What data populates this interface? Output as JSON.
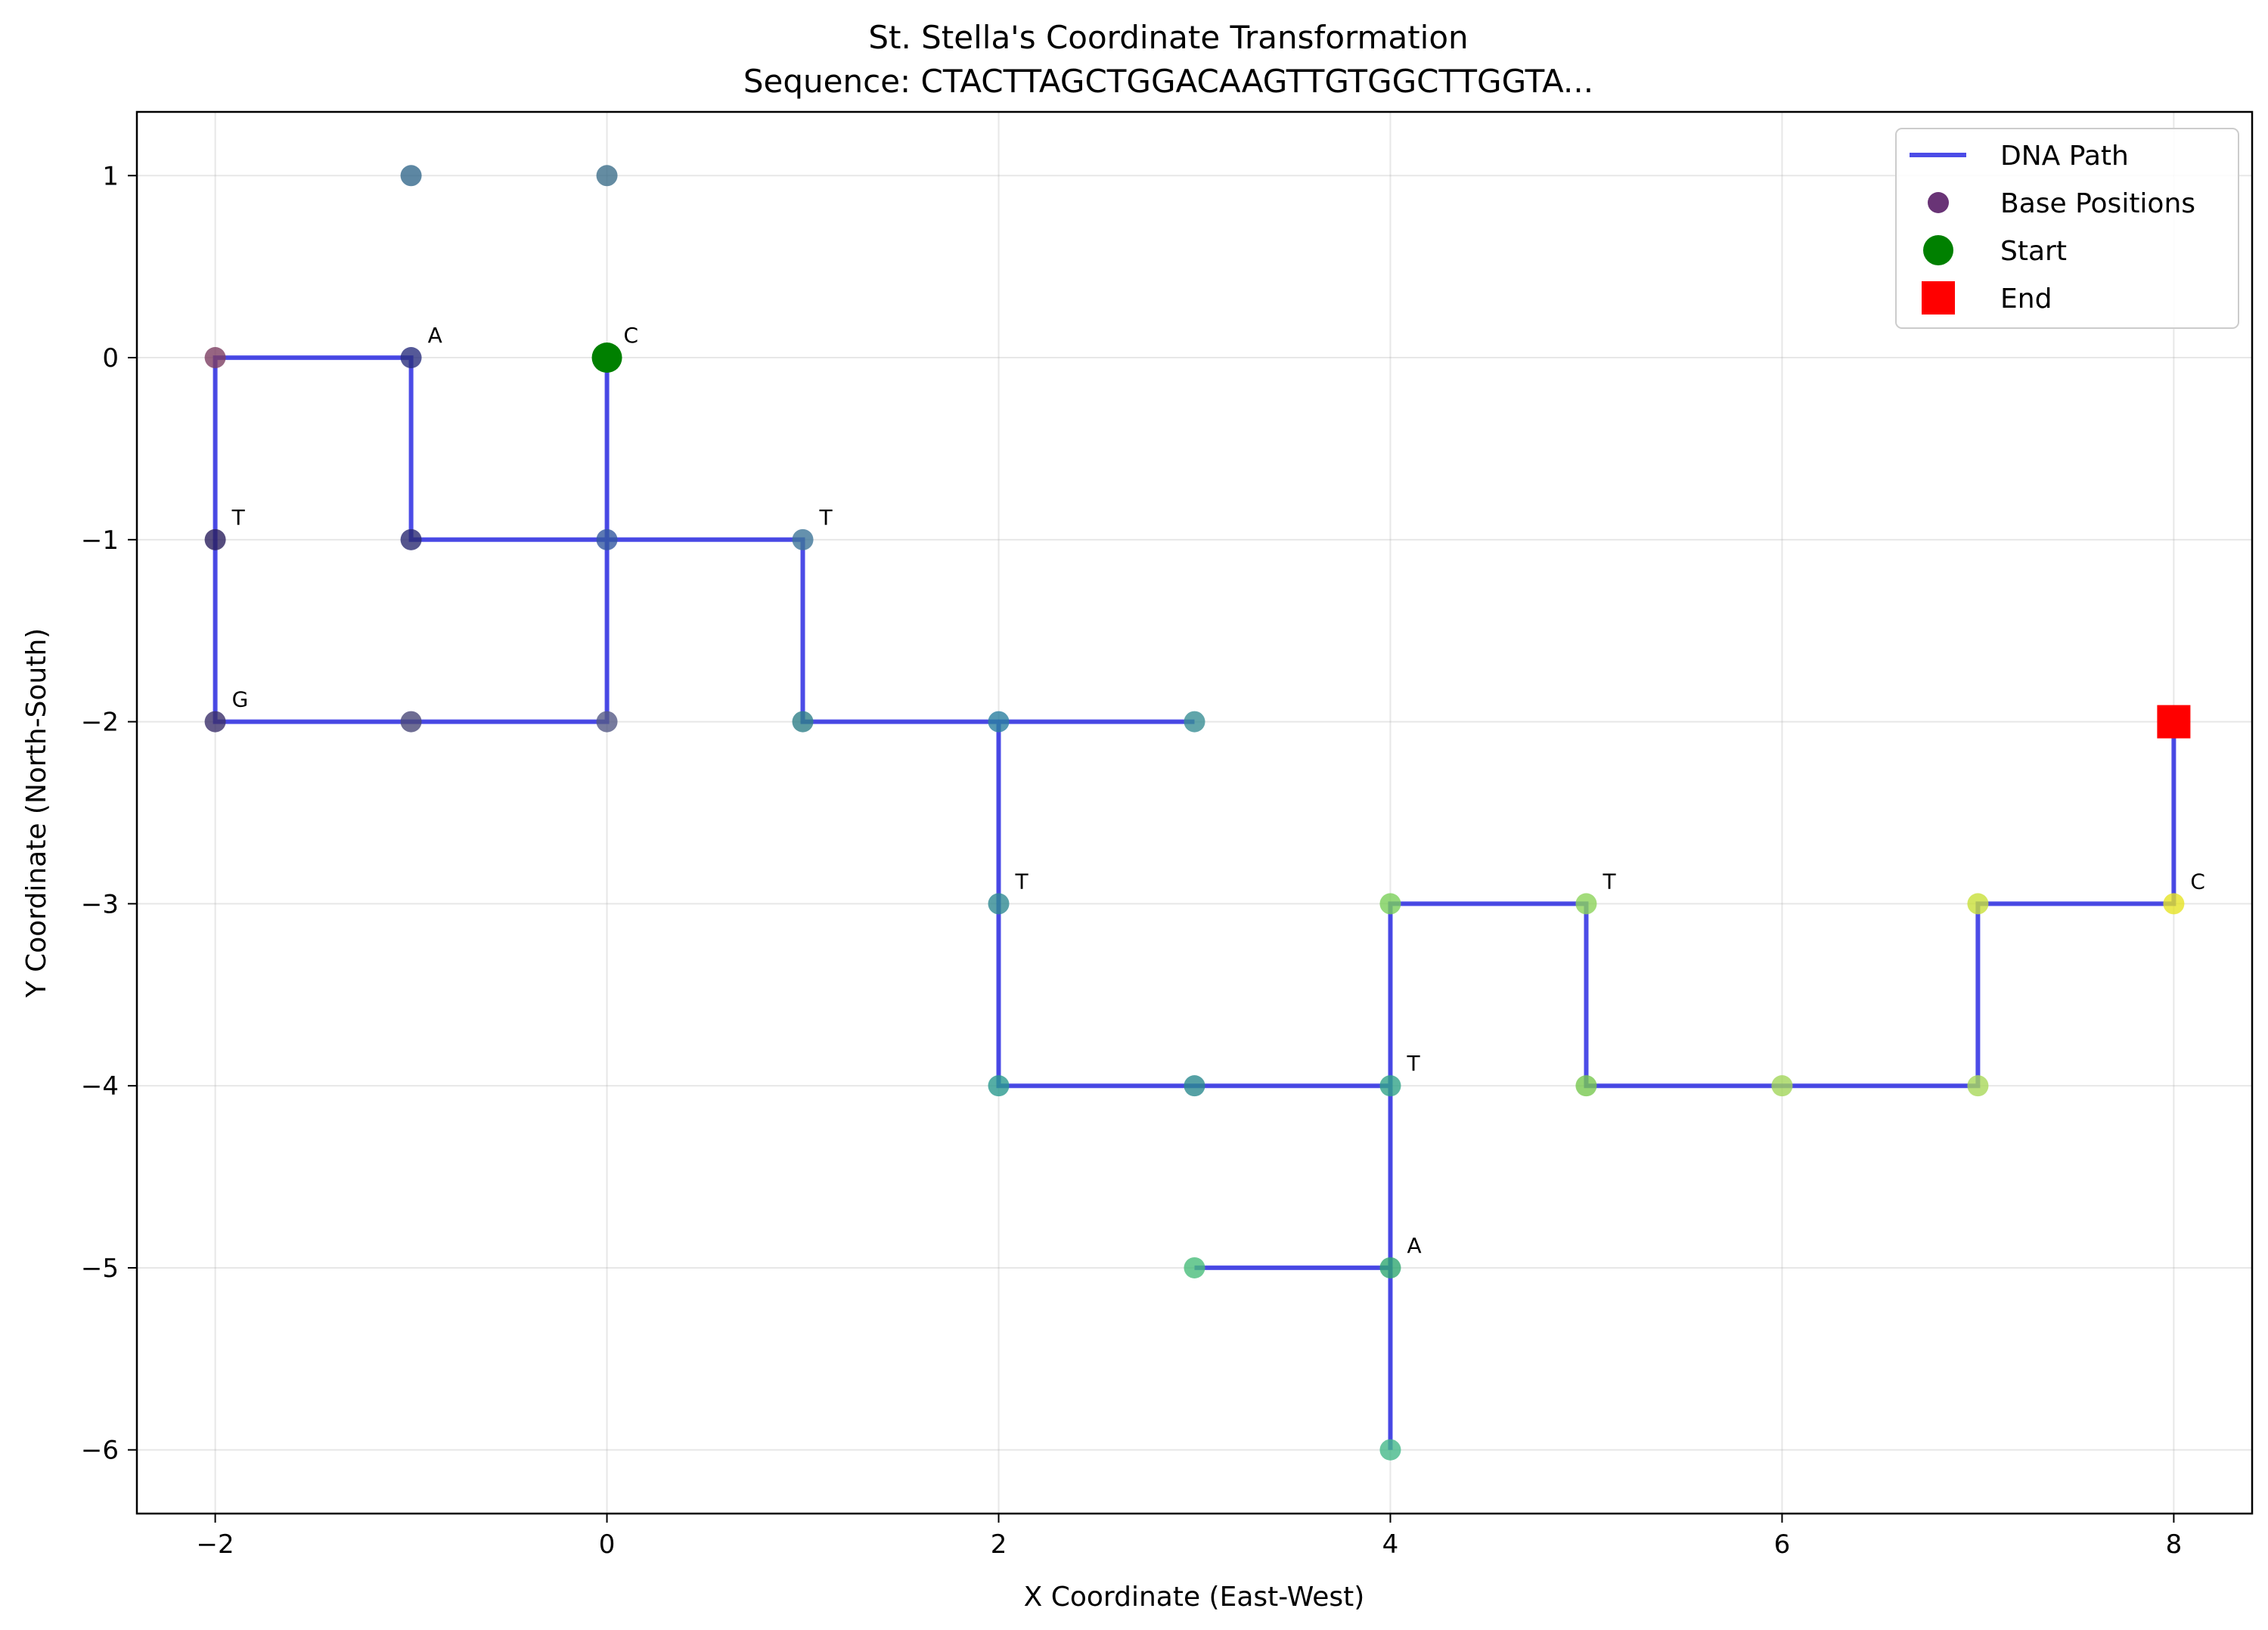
{
  "chart_data": {
    "type": "line",
    "title": "St. Stella's Coordinate Transformation",
    "subtitle": "Sequence: CTACTTAGCTGGACAAGTTGTGGCTTGGTA...",
    "xlabel": "X Coordinate (East-West)",
    "ylabel": "Y Coordinate (North-South)",
    "xlim": [
      -2.4,
      8.4
    ],
    "ylim": [
      -6.35,
      1.35
    ],
    "xticks": [
      -2,
      0,
      2,
      4,
      6,
      8
    ],
    "yticks": [
      1,
      0,
      -1,
      -2,
      -3,
      -4,
      -5,
      -6
    ],
    "xtick_labels": [
      "−2",
      "0",
      "2",
      "4",
      "6",
      "8"
    ],
    "ytick_labels": [
      "1",
      "0",
      "−1",
      "−2",
      "−3",
      "−4",
      "−5",
      "−6"
    ],
    "grid": true,
    "legend_position": "top-right",
    "legend": [
      {
        "label": "DNA Path",
        "kind": "line",
        "color": "#0000dd"
      },
      {
        "label": "Base Positions",
        "kind": "dot",
        "color": "#440154"
      },
      {
        "label": "Start",
        "kind": "dot",
        "color": "#008000"
      },
      {
        "label": "End",
        "kind": "square",
        "color": "#ff0000"
      }
    ],
    "path": [
      [
        0,
        0
      ],
      [
        0,
        -1
      ],
      [
        -1,
        -1
      ],
      [
        -1,
        0
      ],
      [
        -2,
        0
      ],
      [
        -2,
        -1
      ],
      [
        -2,
        -2
      ],
      [
        -1,
        -2
      ],
      [
        0,
        -2
      ],
      [
        0,
        -1
      ],
      [
        1,
        -1
      ],
      [
        1,
        -2
      ],
      [
        2,
        -2
      ],
      [
        3,
        -2
      ],
      [
        2,
        -2
      ],
      [
        2,
        -3
      ],
      [
        2,
        -4
      ],
      [
        3,
        -4
      ],
      [
        4,
        -4
      ],
      [
        4,
        -5
      ],
      [
        3,
        -5
      ],
      [
        4,
        -5
      ],
      [
        4,
        -6
      ],
      [
        4,
        -4
      ],
      [
        4,
        -3
      ],
      [
        5,
        -3
      ],
      [
        5,
        -4
      ],
      [
        6,
        -4
      ],
      [
        7,
        -4
      ],
      [
        7,
        -3
      ],
      [
        8,
        -3
      ],
      [
        8,
        -2
      ]
    ],
    "points": [
      {
        "x": -2,
        "y": 0,
        "color": "#7d3f63"
      },
      {
        "x": -1,
        "y": 0,
        "color": "#2b2f7e"
      },
      {
        "x": 0,
        "y": 0,
        "color": "#2c5f8c"
      },
      {
        "x": -1,
        "y": 1,
        "color": "#35698c"
      },
      {
        "x": 0,
        "y": 1,
        "color": "#3d6f8b"
      },
      {
        "x": -2,
        "y": -1,
        "color": "#2a1f5e"
      },
      {
        "x": -1,
        "y": -1,
        "color": "#2b2b72"
      },
      {
        "x": 0,
        "y": -1,
        "color": "#3357a0"
      },
      {
        "x": 1,
        "y": -1,
        "color": "#3f7698"
      },
      {
        "x": -2,
        "y": -2,
        "color": "#3b2f6a"
      },
      {
        "x": -1,
        "y": -2,
        "color": "#4a4878"
      },
      {
        "x": 0,
        "y": -2,
        "color": "#555a86"
      },
      {
        "x": 1,
        "y": -2,
        "color": "#2f8088"
      },
      {
        "x": 2,
        "y": -2,
        "color": "#2b7fa0"
      },
      {
        "x": 3,
        "y": -2,
        "color": "#3a8f95"
      },
      {
        "x": 2,
        "y": -3,
        "color": "#2f8a92"
      },
      {
        "x": 2,
        "y": -4,
        "color": "#2a9a8e"
      },
      {
        "x": 3,
        "y": -4,
        "color": "#2b8a8f"
      },
      {
        "x": 4,
        "y": -4,
        "color": "#32a488"
      },
      {
        "x": 3,
        "y": -5,
        "color": "#48bd7a"
      },
      {
        "x": 4,
        "y": -5,
        "color": "#2fa870"
      },
      {
        "x": 4,
        "y": -6,
        "color": "#45b98a"
      },
      {
        "x": 4,
        "y": -3,
        "color": "#7bd05a"
      },
      {
        "x": 5,
        "y": -3,
        "color": "#8cd35a"
      },
      {
        "x": 5,
        "y": -4,
        "color": "#78c850"
      },
      {
        "x": 6,
        "y": -4,
        "color": "#a3d65a"
      },
      {
        "x": 7,
        "y": -4,
        "color": "#a9d85a"
      },
      {
        "x": 7,
        "y": -3,
        "color": "#c8e03a"
      },
      {
        "x": 8,
        "y": -3,
        "color": "#e6e325"
      }
    ],
    "base_labels": [
      {
        "text": "C",
        "x": 0,
        "y": 0
      },
      {
        "text": "A",
        "x": -1,
        "y": 0
      },
      {
        "text": "T",
        "x": -2,
        "y": -1
      },
      {
        "text": "G",
        "x": -2,
        "y": -2
      },
      {
        "text": "T",
        "x": 1,
        "y": -1
      },
      {
        "text": "T",
        "x": 2,
        "y": -3
      },
      {
        "text": "T",
        "x": 4,
        "y": -4
      },
      {
        "text": "A",
        "x": 4,
        "y": -5
      },
      {
        "text": "T",
        "x": 5,
        "y": -3
      },
      {
        "text": "C",
        "x": 8,
        "y": -3
      }
    ],
    "start": {
      "x": 0,
      "y": 0
    },
    "end": {
      "x": 8,
      "y": -2
    }
  }
}
